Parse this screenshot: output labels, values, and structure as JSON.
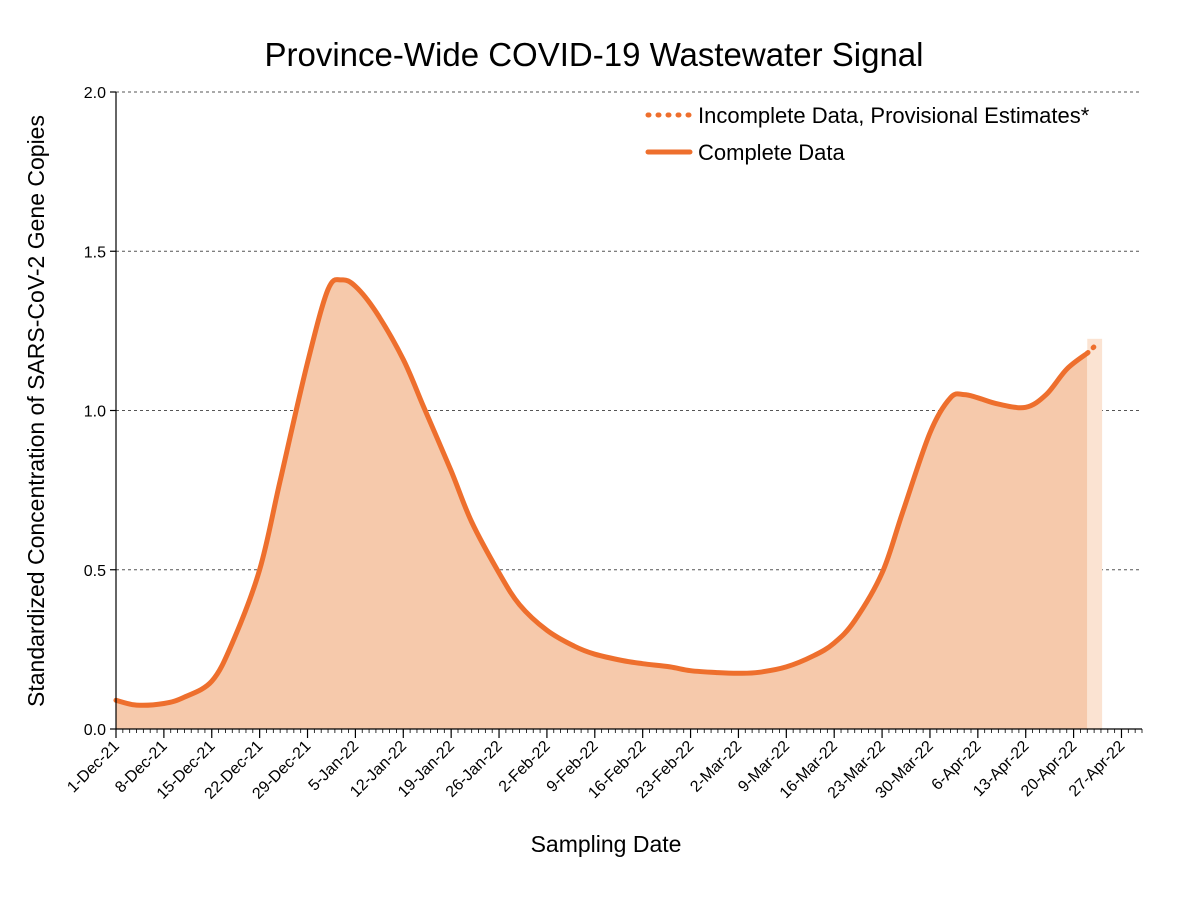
{
  "colors": {
    "line": "#ee6f2d",
    "fill": "#f6c9ab",
    "provisional_fill": "#fbe3d2",
    "grid": "#555555"
  },
  "chart_data": {
    "type": "area",
    "title": "Province-Wide COVID-19 Wastewater Signal",
    "xlabel": "Sampling Date",
    "ylabel": "Standardized Concentration of SARS-CoV-2 Gene Copies",
    "ylim": [
      0,
      2.0
    ],
    "y_ticks": [
      "0.0",
      "0.5",
      "1.0",
      "1.5",
      "2.0"
    ],
    "x_range": [
      "2021-12-01",
      "2022-04-30"
    ],
    "x_ticks": [
      {
        "date": "2021-12-01",
        "label": "1-Dec-21"
      },
      {
        "date": "2021-12-08",
        "label": "8-Dec-21"
      },
      {
        "date": "2021-12-15",
        "label": "15-Dec-21"
      },
      {
        "date": "2021-12-22",
        "label": "22-Dec-21"
      },
      {
        "date": "2021-12-29",
        "label": "29-Dec-21"
      },
      {
        "date": "2022-01-05",
        "label": "5-Jan-22"
      },
      {
        "date": "2022-01-12",
        "label": "12-Jan-22"
      },
      {
        "date": "2022-01-19",
        "label": "19-Jan-22"
      },
      {
        "date": "2022-01-26",
        "label": "26-Jan-22"
      },
      {
        "date": "2022-02-02",
        "label": "2-Feb-22"
      },
      {
        "date": "2022-02-09",
        "label": "9-Feb-22"
      },
      {
        "date": "2022-02-16",
        "label": "16-Feb-22"
      },
      {
        "date": "2022-02-23",
        "label": "23-Feb-22"
      },
      {
        "date": "2022-03-02",
        "label": "2-Mar-22"
      },
      {
        "date": "2022-03-09",
        "label": "9-Mar-22"
      },
      {
        "date": "2022-03-16",
        "label": "16-Mar-22"
      },
      {
        "date": "2022-03-23",
        "label": "23-Mar-22"
      },
      {
        "date": "2022-03-30",
        "label": "30-Mar-22"
      },
      {
        "date": "2022-04-06",
        "label": "6-Apr-22"
      },
      {
        "date": "2022-04-13",
        "label": "13-Apr-22"
      },
      {
        "date": "2022-04-20",
        "label": "20-Apr-22"
      },
      {
        "date": "2022-04-27",
        "label": "27-Apr-22"
      }
    ],
    "legend_position": "top-right",
    "series": [
      {
        "name": "Complete Data",
        "style": "solid",
        "points": [
          [
            "2021-12-01",
            0.09
          ],
          [
            "2021-12-04",
            0.075
          ],
          [
            "2021-12-08",
            0.08
          ],
          [
            "2021-12-11",
            0.1
          ],
          [
            "2021-12-15",
            0.15
          ],
          [
            "2021-12-18",
            0.27
          ],
          [
            "2021-12-22",
            0.5
          ],
          [
            "2021-12-25",
            0.78
          ],
          [
            "2021-12-29",
            1.15
          ],
          [
            "2022-01-01",
            1.38
          ],
          [
            "2022-01-03",
            1.41
          ],
          [
            "2022-01-05",
            1.39
          ],
          [
            "2022-01-08",
            1.31
          ],
          [
            "2022-01-12",
            1.16
          ],
          [
            "2022-01-15",
            1.01
          ],
          [
            "2022-01-19",
            0.81
          ],
          [
            "2022-01-22",
            0.65
          ],
          [
            "2022-01-26",
            0.49
          ],
          [
            "2022-01-29",
            0.39
          ],
          [
            "2022-02-02",
            0.31
          ],
          [
            "2022-02-06",
            0.26
          ],
          [
            "2022-02-09",
            0.235
          ],
          [
            "2022-02-13",
            0.215
          ],
          [
            "2022-02-16",
            0.205
          ],
          [
            "2022-02-20",
            0.195
          ],
          [
            "2022-02-23",
            0.183
          ],
          [
            "2022-02-27",
            0.177
          ],
          [
            "2022-03-02",
            0.175
          ],
          [
            "2022-03-05",
            0.178
          ],
          [
            "2022-03-09",
            0.195
          ],
          [
            "2022-03-13",
            0.23
          ],
          [
            "2022-03-16",
            0.27
          ],
          [
            "2022-03-19",
            0.34
          ],
          [
            "2022-03-23",
            0.49
          ],
          [
            "2022-03-26",
            0.68
          ],
          [
            "2022-03-30",
            0.93
          ],
          [
            "2022-04-02",
            1.04
          ],
          [
            "2022-04-04",
            1.05
          ],
          [
            "2022-04-06",
            1.04
          ],
          [
            "2022-04-09",
            1.02
          ],
          [
            "2022-04-13",
            1.01
          ],
          [
            "2022-04-16",
            1.05
          ],
          [
            "2022-04-19",
            1.13
          ],
          [
            "2022-04-22",
            1.18
          ]
        ]
      },
      {
        "name": "Incomplete Data, Provisional Estimates*",
        "style": "dotted",
        "points": [
          [
            "2022-04-22",
            1.18
          ],
          [
            "2022-04-23",
            1.2
          ]
        ]
      }
    ]
  }
}
